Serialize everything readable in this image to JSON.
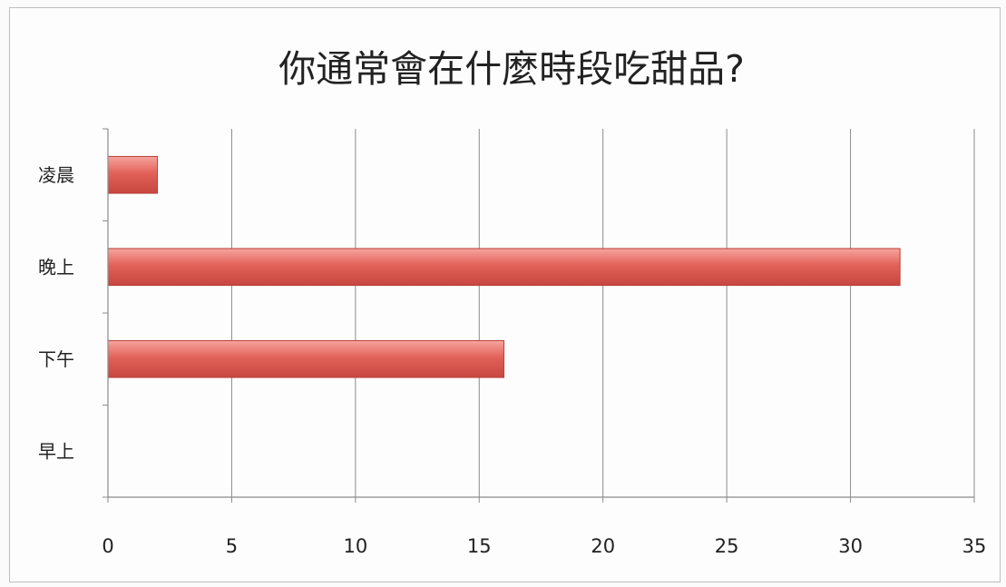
{
  "chart_data": {
    "type": "bar",
    "orientation": "horizontal",
    "title": "你通常會在什麼時段吃甜品?",
    "xlabel": "",
    "ylabel": "",
    "categories": [
      "早上",
      "下午",
      "晚上",
      "凌晨"
    ],
    "values": [
      0,
      16,
      32,
      2
    ],
    "xlim": [
      0,
      35
    ],
    "xticks": [
      "0",
      "5",
      "10",
      "15",
      "20",
      "25",
      "30",
      "35"
    ],
    "grid": true,
    "legend": "none",
    "bar_color": "#e2625a",
    "bar_edge_color": "#b8403a"
  }
}
